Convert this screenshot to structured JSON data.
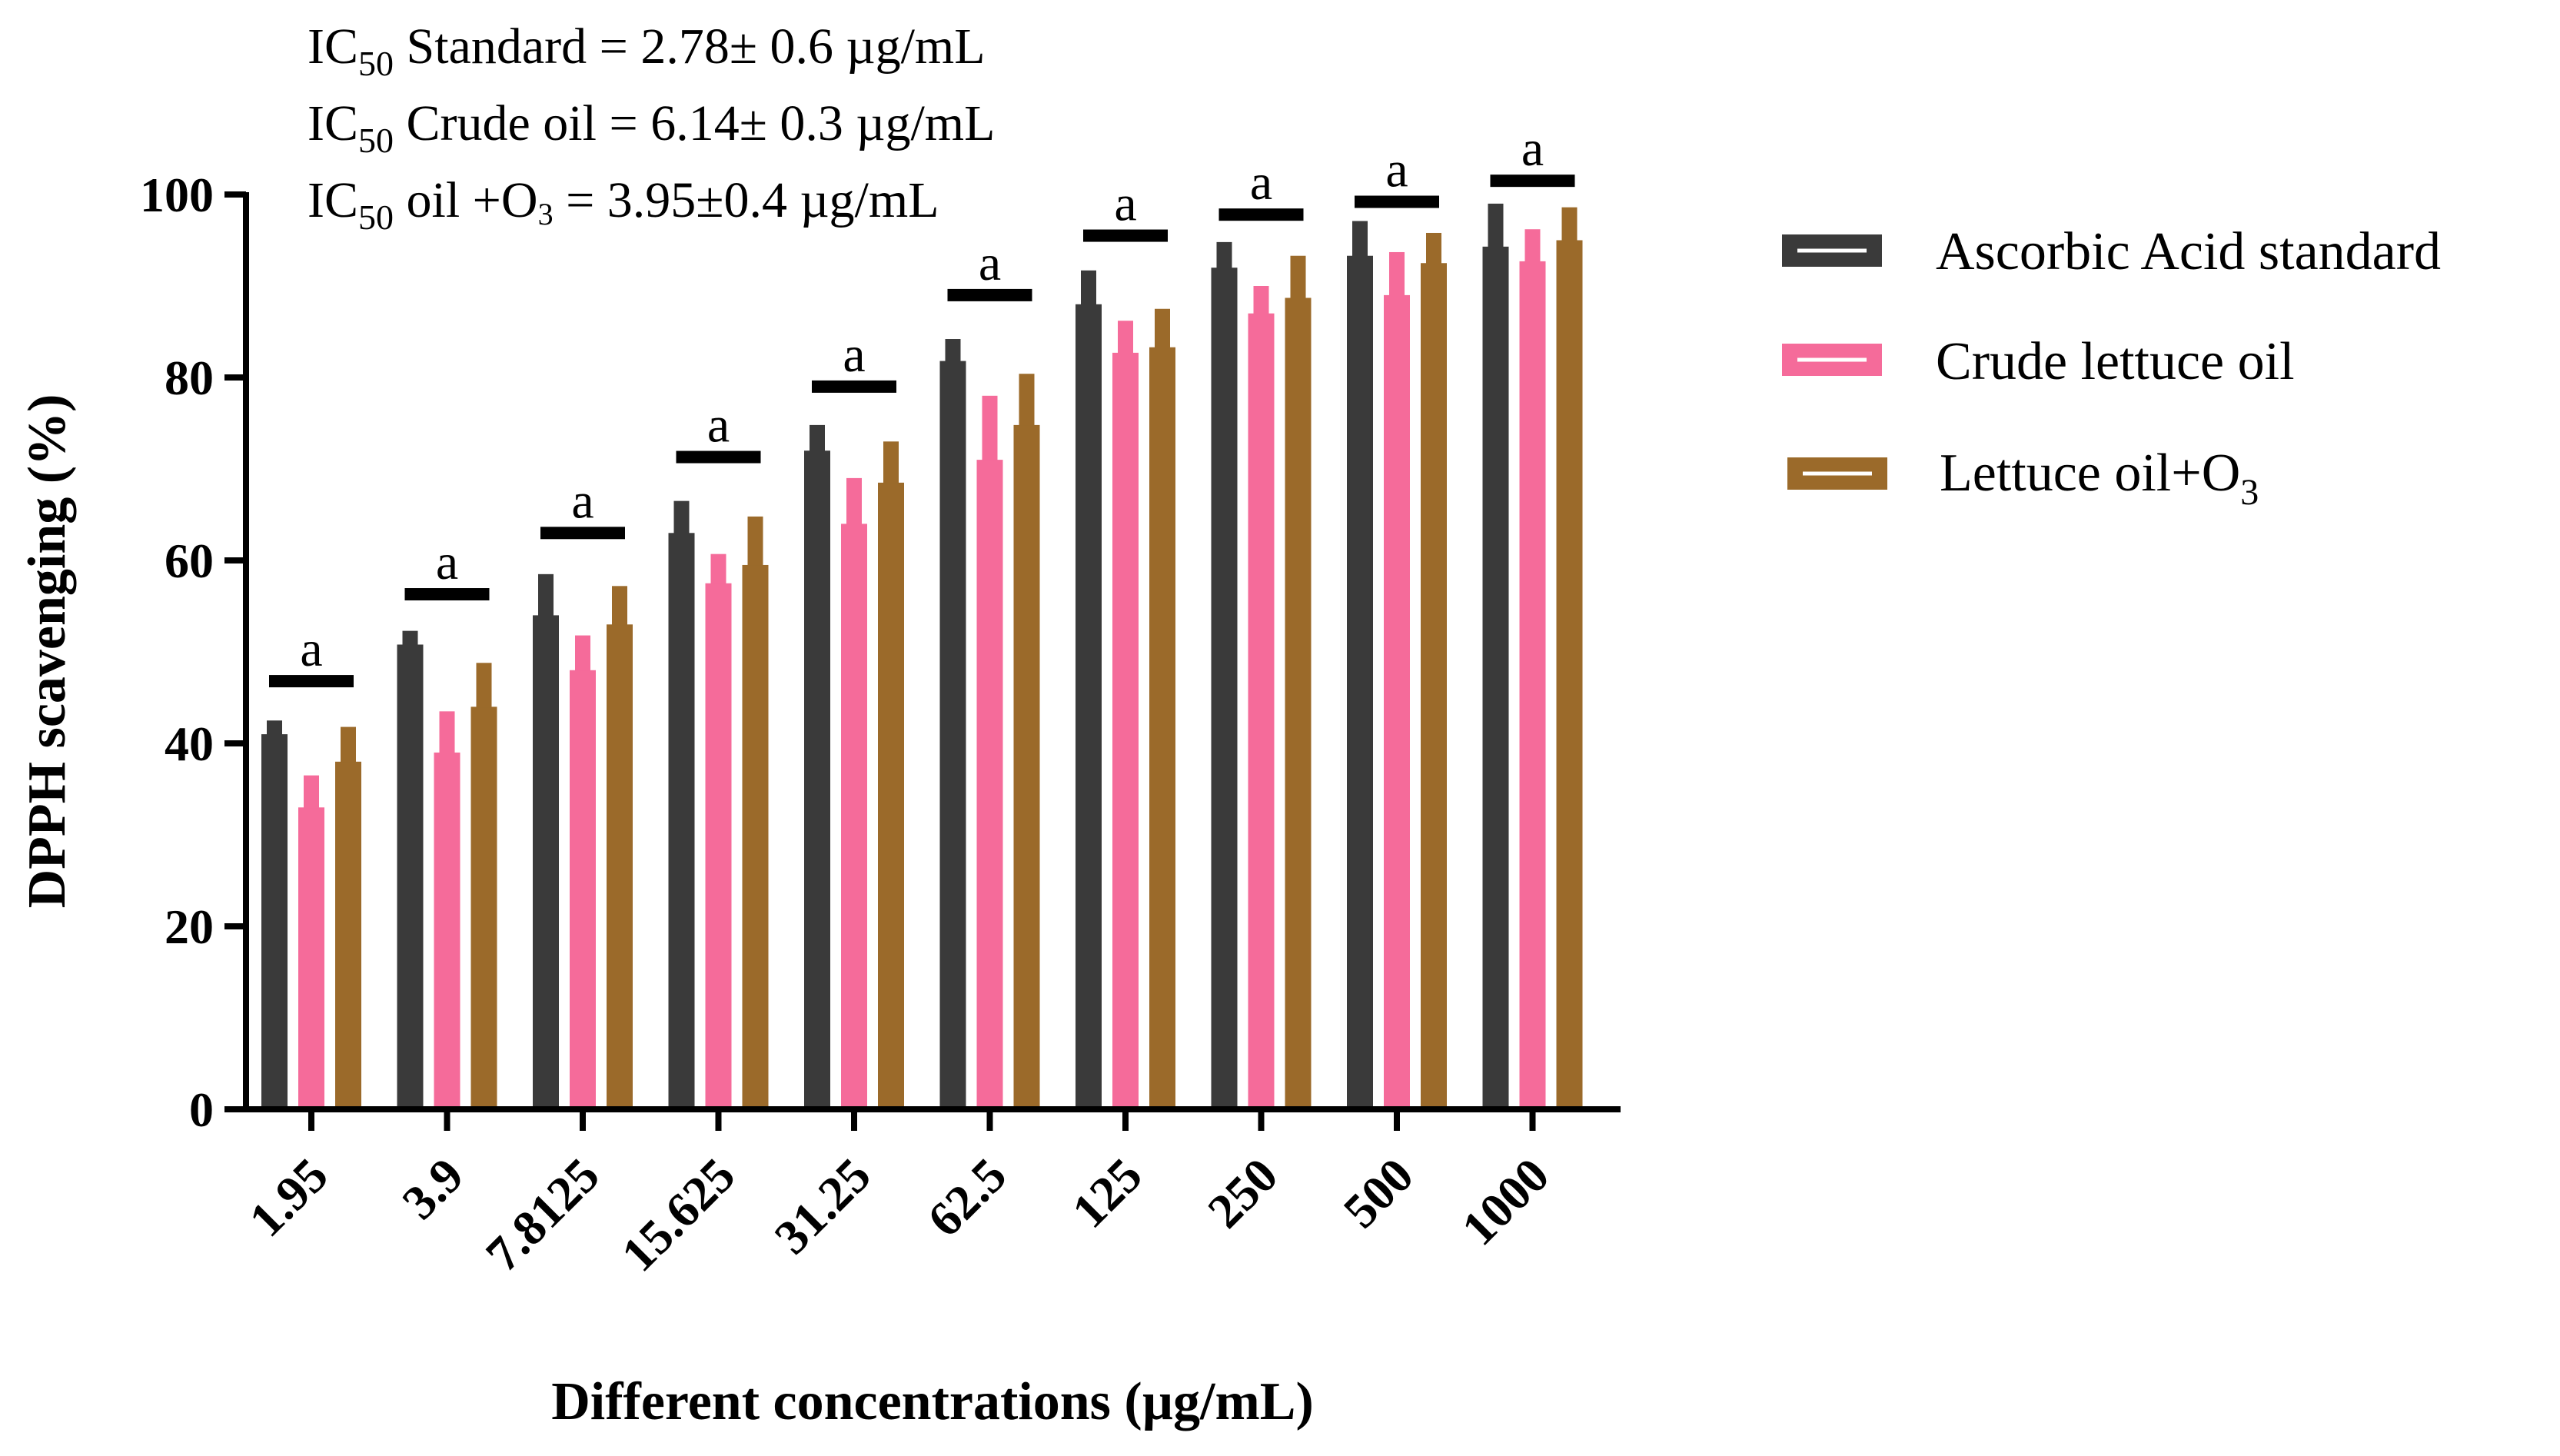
{
  "chart_data": {
    "type": "bar",
    "xlabel": "Different concentrations (µg/mL)",
    "ylabel": "DPPH scavenging (%)",
    "ylim": [
      0,
      100
    ],
    "yticks": [
      0,
      20,
      40,
      60,
      80,
      100
    ],
    "categories": [
      "1.95",
      "3.9",
      "7.8125",
      "15.625",
      "31.25",
      "62.5",
      "125",
      "250",
      "500",
      "1000"
    ],
    "series": [
      {
        "name": "Ascorbic Acid standard",
        "color": "#3a3a3a",
        "values": [
          41.0,
          50.8,
          54.0,
          63.0,
          72.0,
          81.8,
          88.0,
          92.0,
          93.3,
          94.3
        ],
        "error_upper": [
          42.5,
          52.3,
          58.5,
          66.5,
          74.8,
          84.2,
          91.7,
          94.8,
          97.1,
          99.0
        ]
      },
      {
        "name": "Crude lettuce oil",
        "color": "#f56b9a",
        "values": [
          33.0,
          39.0,
          48.0,
          57.5,
          64.0,
          71.0,
          82.7,
          87.0,
          89.0,
          92.7
        ],
        "error_upper": [
          36.5,
          43.5,
          51.8,
          60.7,
          69.0,
          78.0,
          86.2,
          90.0,
          93.7,
          96.2
        ]
      },
      {
        "name": "Lettuce oil+O3",
        "color": "#9b6a2a",
        "values": [
          38.0,
          44.0,
          53.0,
          59.5,
          68.5,
          74.8,
          83.3,
          88.7,
          92.5,
          95.0
        ],
        "error_upper": [
          41.8,
          48.8,
          57.2,
          64.8,
          73.0,
          80.4,
          87.5,
          93.3,
          95.8,
          98.6
        ]
      }
    ],
    "significance": {
      "letter": "a",
      "line_values": [
        46.8,
        56.3,
        63.0,
        71.3,
        79.0,
        89.0,
        95.5,
        97.8,
        99.2,
        101.5
      ]
    },
    "legend_placement": "right",
    "grid": false,
    "annotations": {
      "ic50_standard": {
        "prefix": "IC",
        "sub": "50",
        "text": " Standard = 2.78± 0.6 µg/mL"
      },
      "ic50_crude": {
        "prefix": "IC",
        "sub": "50",
        "text": " Crude oil = 6.14± 0.3 µg/mL"
      },
      "ic50_ozone": {
        "prefix": "IC",
        "sub": "50",
        "text_a": " oil +O",
        "sub2": "3",
        "text_b": " = 3.95±0.4 µg/mL"
      }
    },
    "legend": {
      "items": [
        {
          "label": "Ascorbic Acid standard"
        },
        {
          "label": "Crude lettuce oil"
        },
        {
          "label_a": "Lettuce oil+O",
          "label_sub": "3"
        }
      ]
    }
  }
}
